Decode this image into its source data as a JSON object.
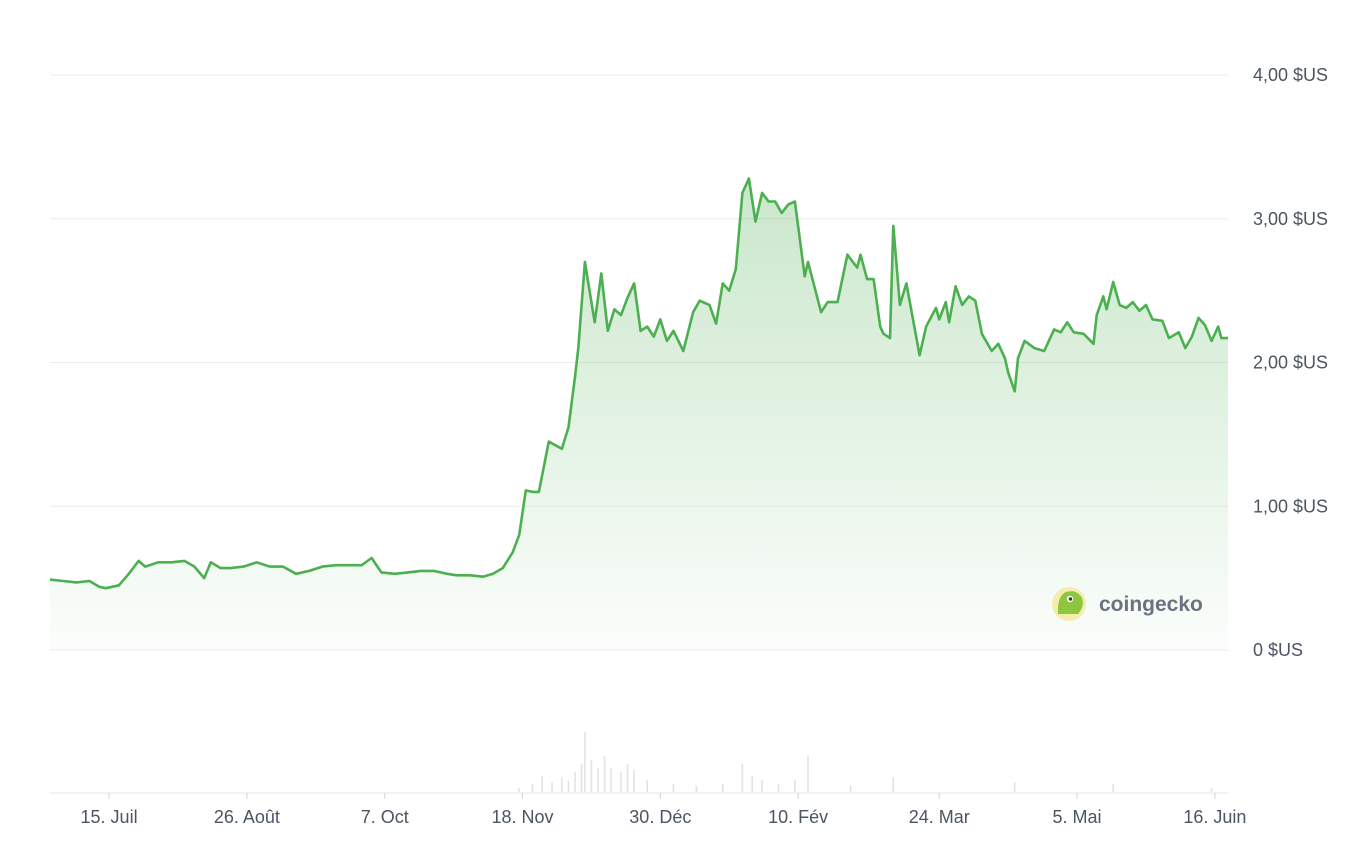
{
  "chart_data": {
    "type": "area",
    "title": "",
    "xlabel": "",
    "ylabel": "",
    "ylim": [
      0,
      4
    ],
    "y_ticks": [
      {
        "value": 4,
        "label": "4,00 $US"
      },
      {
        "value": 3,
        "label": "3,00 $US"
      },
      {
        "value": 2,
        "label": "2,00 $US"
      },
      {
        "value": 1,
        "label": "1,00 $US"
      },
      {
        "value": 0,
        "label": "0 $US"
      }
    ],
    "x_ticks": [
      {
        "date": "2023-07-15",
        "label": "15. Juil"
      },
      {
        "date": "2023-08-26",
        "label": "26. Août"
      },
      {
        "date": "2023-10-07",
        "label": "7. Oct"
      },
      {
        "date": "2023-11-18",
        "label": "18. Nov"
      },
      {
        "date": "2023-12-30",
        "label": "30. Déc"
      },
      {
        "date": "2024-02-10",
        "label": "10. Fév"
      },
      {
        "date": "2024-03-24",
        "label": "24. Mar"
      },
      {
        "date": "2024-05-05",
        "label": "5. Mai"
      },
      {
        "date": "2024-06-16",
        "label": "16. Juin"
      }
    ],
    "x_range": [
      "2023-06-27",
      "2024-06-20"
    ],
    "grid": true,
    "series": [
      {
        "color": "#4caf50",
        "points": [
          [
            "2023-06-27",
            0.49
          ],
          [
            "2023-07-01",
            0.48
          ],
          [
            "2023-07-05",
            0.47
          ],
          [
            "2023-07-09",
            0.48
          ],
          [
            "2023-07-12",
            0.44
          ],
          [
            "2023-07-14",
            0.43
          ],
          [
            "2023-07-18",
            0.45
          ],
          [
            "2023-07-21",
            0.53
          ],
          [
            "2023-07-24",
            0.62
          ],
          [
            "2023-07-26",
            0.58
          ],
          [
            "2023-07-30",
            0.61
          ],
          [
            "2023-08-03",
            0.61
          ],
          [
            "2023-08-07",
            0.62
          ],
          [
            "2023-08-10",
            0.58
          ],
          [
            "2023-08-13",
            0.5
          ],
          [
            "2023-08-15",
            0.61
          ],
          [
            "2023-08-18",
            0.57
          ],
          [
            "2023-08-21",
            0.57
          ],
          [
            "2023-08-25",
            0.58
          ],
          [
            "2023-08-29",
            0.61
          ],
          [
            "2023-09-02",
            0.58
          ],
          [
            "2023-09-06",
            0.58
          ],
          [
            "2023-09-10",
            0.53
          ],
          [
            "2023-09-14",
            0.55
          ],
          [
            "2023-09-18",
            0.58
          ],
          [
            "2023-09-22",
            0.59
          ],
          [
            "2023-09-26",
            0.59
          ],
          [
            "2023-09-30",
            0.59
          ],
          [
            "2023-10-03",
            0.64
          ],
          [
            "2023-10-06",
            0.54
          ],
          [
            "2023-10-10",
            0.53
          ],
          [
            "2023-10-14",
            0.54
          ],
          [
            "2023-10-18",
            0.55
          ],
          [
            "2023-10-22",
            0.55
          ],
          [
            "2023-10-26",
            0.53
          ],
          [
            "2023-10-29",
            0.52
          ],
          [
            "2023-11-02",
            0.52
          ],
          [
            "2023-11-06",
            0.51
          ],
          [
            "2023-11-09",
            0.53
          ],
          [
            "2023-11-12",
            0.57
          ],
          [
            "2023-11-15",
            0.68
          ],
          [
            "2023-11-17",
            0.8
          ],
          [
            "2023-11-19",
            1.11
          ],
          [
            "2023-11-21",
            1.1
          ],
          [
            "2023-11-23",
            1.1
          ],
          [
            "2023-11-26",
            1.45
          ],
          [
            "2023-11-30",
            1.4
          ],
          [
            "2023-12-02",
            1.55
          ],
          [
            "2023-12-04",
            1.9
          ],
          [
            "2023-12-05",
            2.1
          ],
          [
            "2023-12-07",
            2.7
          ],
          [
            "2023-12-10",
            2.28
          ],
          [
            "2023-12-12",
            2.62
          ],
          [
            "2023-12-14",
            2.22
          ],
          [
            "2023-12-16",
            2.37
          ],
          [
            "2023-12-18",
            2.33
          ],
          [
            "2023-12-20",
            2.45
          ],
          [
            "2023-12-22",
            2.55
          ],
          [
            "2023-12-24",
            2.22
          ],
          [
            "2023-12-26",
            2.25
          ],
          [
            "2023-12-28",
            2.18
          ],
          [
            "2023-12-30",
            2.3
          ],
          [
            "2024-01-01",
            2.15
          ],
          [
            "2024-01-03",
            2.22
          ],
          [
            "2024-01-06",
            2.08
          ],
          [
            "2024-01-09",
            2.35
          ],
          [
            "2024-01-11",
            2.43
          ],
          [
            "2024-01-14",
            2.4
          ],
          [
            "2024-01-16",
            2.27
          ],
          [
            "2024-01-18",
            2.55
          ],
          [
            "2024-01-20",
            2.5
          ],
          [
            "2024-01-22",
            2.65
          ],
          [
            "2024-01-24",
            3.18
          ],
          [
            "2024-01-26",
            3.28
          ],
          [
            "2024-01-28",
            2.98
          ],
          [
            "2024-01-30",
            3.18
          ],
          [
            "2024-02-01",
            3.12
          ],
          [
            "2024-02-03",
            3.12
          ],
          [
            "2024-02-05",
            3.04
          ],
          [
            "2024-02-07",
            3.1
          ],
          [
            "2024-02-09",
            3.12
          ],
          [
            "2024-02-12",
            2.6
          ],
          [
            "2024-02-13",
            2.7
          ],
          [
            "2024-02-17",
            2.35
          ],
          [
            "2024-02-19",
            2.42
          ],
          [
            "2024-02-22",
            2.42
          ],
          [
            "2024-02-25",
            2.75
          ],
          [
            "2024-02-28",
            2.66
          ],
          [
            "2024-02-29",
            2.75
          ],
          [
            "2024-03-02",
            2.58
          ],
          [
            "2024-03-04",
            2.58
          ],
          [
            "2024-03-06",
            2.25
          ],
          [
            "2024-03-07",
            2.2
          ],
          [
            "2024-03-09",
            2.17
          ],
          [
            "2024-03-10",
            2.95
          ],
          [
            "2024-03-12",
            2.4
          ],
          [
            "2024-03-14",
            2.55
          ],
          [
            "2024-03-16",
            2.3
          ],
          [
            "2024-03-18",
            2.05
          ],
          [
            "2024-03-20",
            2.25
          ],
          [
            "2024-03-23",
            2.38
          ],
          [
            "2024-03-24",
            2.3
          ],
          [
            "2024-03-26",
            2.42
          ],
          [
            "2024-03-27",
            2.28
          ],
          [
            "2024-03-29",
            2.53
          ],
          [
            "2024-03-31",
            2.4
          ],
          [
            "2024-04-02",
            2.46
          ],
          [
            "2024-04-04",
            2.43
          ],
          [
            "2024-04-06",
            2.2
          ],
          [
            "2024-04-09",
            2.08
          ],
          [
            "2024-04-11",
            2.13
          ],
          [
            "2024-04-13",
            2.03
          ],
          [
            "2024-04-14",
            1.93
          ],
          [
            "2024-04-16",
            1.8
          ],
          [
            "2024-04-17",
            2.03
          ],
          [
            "2024-04-19",
            2.15
          ],
          [
            "2024-04-22",
            2.1
          ],
          [
            "2024-04-25",
            2.08
          ],
          [
            "2024-04-28",
            2.23
          ],
          [
            "2024-04-30",
            2.21
          ],
          [
            "2024-05-02",
            2.28
          ],
          [
            "2024-05-04",
            2.21
          ],
          [
            "2024-05-07",
            2.2
          ],
          [
            "2024-05-10",
            2.13
          ],
          [
            "2024-05-11",
            2.33
          ],
          [
            "2024-05-13",
            2.46
          ],
          [
            "2024-05-14",
            2.37
          ],
          [
            "2024-05-16",
            2.56
          ],
          [
            "2024-05-18",
            2.4
          ],
          [
            "2024-05-20",
            2.38
          ],
          [
            "2024-05-22",
            2.42
          ],
          [
            "2024-05-24",
            2.36
          ],
          [
            "2024-05-26",
            2.4
          ],
          [
            "2024-05-28",
            2.3
          ],
          [
            "2024-05-31",
            2.29
          ],
          [
            "2024-06-02",
            2.17
          ],
          [
            "2024-06-05",
            2.21
          ],
          [
            "2024-06-07",
            2.1
          ],
          [
            "2024-06-09",
            2.18
          ],
          [
            "2024-06-11",
            2.31
          ],
          [
            "2024-06-13",
            2.26
          ],
          [
            "2024-06-15",
            2.15
          ],
          [
            "2024-06-17",
            2.25
          ],
          [
            "2024-06-18",
            2.17
          ],
          [
            "2024-06-20",
            2.17
          ]
        ]
      }
    ],
    "volume_bars": [
      [
        "2023-11-17",
        0.05
      ],
      [
        "2023-11-21",
        0.1
      ],
      [
        "2023-11-24",
        0.2
      ],
      [
        "2023-11-27",
        0.12
      ],
      [
        "2023-11-30",
        0.18
      ],
      [
        "2023-12-02",
        0.14
      ],
      [
        "2023-12-04",
        0.25
      ],
      [
        "2023-12-06",
        0.35
      ],
      [
        "2023-12-07",
        0.75
      ],
      [
        "2023-12-09",
        0.4
      ],
      [
        "2023-12-11",
        0.3
      ],
      [
        "2023-12-13",
        0.45
      ],
      [
        "2023-12-15",
        0.3
      ],
      [
        "2023-12-18",
        0.25
      ],
      [
        "2023-12-20",
        0.35
      ],
      [
        "2023-12-22",
        0.28
      ],
      [
        "2023-12-26",
        0.15
      ],
      [
        "2024-01-03",
        0.1
      ],
      [
        "2024-01-10",
        0.08
      ],
      [
        "2024-01-18",
        0.1
      ],
      [
        "2024-01-24",
        0.35
      ],
      [
        "2024-01-27",
        0.2
      ],
      [
        "2024-01-30",
        0.15
      ],
      [
        "2024-02-04",
        0.1
      ],
      [
        "2024-02-09",
        0.15
      ],
      [
        "2024-02-13",
        0.45
      ],
      [
        "2024-02-26",
        0.08
      ],
      [
        "2024-03-10",
        0.18
      ],
      [
        "2024-04-16",
        0.12
      ],
      [
        "2024-05-16",
        0.1
      ],
      [
        "2024-06-15",
        0.05
      ]
    ],
    "color": "#4caf50"
  },
  "watermark": {
    "label": "coingecko"
  }
}
